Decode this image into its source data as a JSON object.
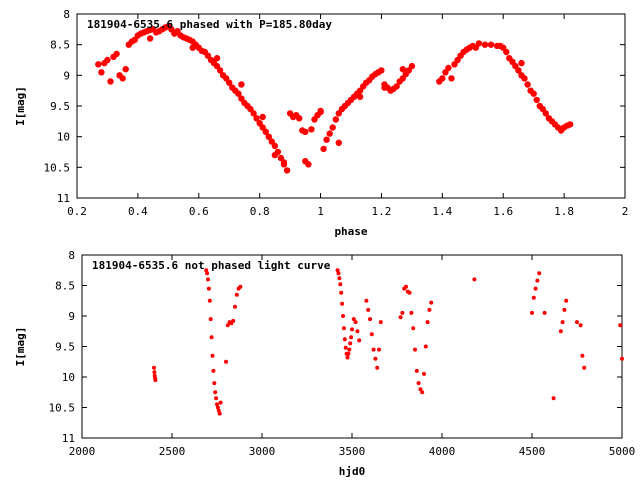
{
  "chart_data": [
    {
      "type": "scatter",
      "title": "181904-6535.6 phased with P=185.80day",
      "xlabel": "phase",
      "ylabel": "I[mag]",
      "xlim": [
        0.2,
        2.0
      ],
      "ylim": [
        11,
        8
      ],
      "y_inverted": true,
      "grid": false,
      "marker_color": "#ff0000",
      "x_ticks": [
        "0.2",
        "0.4",
        "0.6",
        "0.8",
        "1",
        "1.2",
        "1.4",
        "1.6",
        "1.8",
        "2"
      ],
      "y_ticks": [
        "8",
        "8.5",
        "9",
        "9.5",
        "10",
        "10.5",
        "11"
      ],
      "x": [
        0.27,
        0.28,
        0.3,
        0.32,
        0.33,
        0.34,
        0.35,
        0.37,
        0.38,
        0.39,
        0.4,
        0.41,
        0.42,
        0.43,
        0.44,
        0.45,
        0.46,
        0.47,
        0.48,
        0.49,
        0.5,
        0.51,
        0.52,
        0.53,
        0.54,
        0.55,
        0.56,
        0.57,
        0.58,
        0.59,
        0.6,
        0.61,
        0.62,
        0.63,
        0.64,
        0.65,
        0.66,
        0.67,
        0.68,
        0.69,
        0.7,
        0.71,
        0.72,
        0.73,
        0.74,
        0.75,
        0.76,
        0.77,
        0.78,
        0.79,
        0.8,
        0.81,
        0.82,
        0.83,
        0.84,
        0.85,
        0.86,
        0.87,
        0.88,
        0.89,
        0.9,
        0.92,
        0.93,
        0.94,
        0.95,
        0.96,
        0.97,
        0.98,
        0.99,
        1.0,
        1.01,
        1.02,
        1.03,
        1.04,
        1.05,
        1.06,
        1.07,
        1.08,
        1.09,
        1.1,
        1.11,
        1.12,
        1.13,
        1.14,
        1.15,
        1.16,
        1.17,
        1.18,
        1.19,
        1.2,
        1.21,
        1.22,
        1.23,
        1.24,
        1.25,
        1.26,
        1.27,
        1.28,
        1.29,
        1.3,
        1.39,
        1.4,
        1.41,
        1.42,
        1.44,
        1.45,
        1.46,
        1.47,
        1.48,
        1.49,
        1.5,
        1.52,
        1.54,
        1.56,
        1.58,
        1.6,
        1.61,
        1.62,
        1.63,
        1.64,
        1.65,
        1.66,
        1.67,
        1.68,
        1.69,
        1.7,
        1.71,
        1.72,
        1.73,
        1.74,
        1.75,
        1.76,
        1.77,
        1.78,
        1.79,
        1.8,
        1.81,
        1.82,
        0.29,
        0.31,
        0.36,
        0.44,
        0.52,
        0.58,
        0.66,
        0.74,
        0.81,
        0.85,
        0.88,
        0.91,
        0.95,
        1.0,
        1.06,
        1.13,
        1.21,
        1.27,
        1.43,
        1.51,
        1.59,
        1.66
      ],
      "y": [
        8.82,
        8.95,
        8.75,
        8.7,
        8.65,
        9.0,
        9.05,
        8.5,
        8.45,
        8.42,
        8.35,
        8.32,
        8.3,
        8.28,
        8.26,
        8.25,
        8.3,
        8.28,
        8.25,
        8.22,
        8.2,
        8.25,
        8.3,
        8.28,
        8.35,
        8.38,
        8.4,
        8.42,
        8.45,
        8.5,
        8.55,
        8.6,
        8.62,
        8.68,
        8.75,
        8.8,
        8.85,
        8.92,
        9.0,
        9.05,
        9.12,
        9.2,
        9.25,
        9.3,
        9.38,
        9.45,
        9.5,
        9.55,
        9.62,
        9.7,
        9.78,
        9.85,
        9.92,
        10.0,
        10.08,
        10.15,
        10.25,
        10.35,
        10.45,
        10.55,
        9.62,
        9.65,
        9.7,
        9.9,
        10.4,
        10.45,
        9.88,
        9.72,
        9.65,
        9.58,
        10.2,
        10.05,
        9.95,
        9.85,
        9.72,
        9.62,
        9.55,
        9.5,
        9.45,
        9.4,
        9.35,
        9.3,
        9.25,
        9.18,
        9.12,
        9.08,
        9.02,
        8.98,
        8.95,
        8.92,
        9.15,
        9.2,
        9.25,
        9.22,
        9.18,
        9.1,
        9.05,
        8.98,
        8.92,
        8.85,
        9.1,
        9.05,
        8.95,
        8.88,
        8.82,
        8.75,
        8.68,
        8.62,
        8.58,
        8.55,
        8.52,
        8.48,
        8.5,
        8.5,
        8.52,
        8.55,
        8.62,
        8.72,
        8.78,
        8.85,
        8.92,
        9.0,
        9.05,
        9.15,
        9.25,
        9.3,
        9.4,
        9.5,
        9.55,
        9.62,
        9.7,
        9.75,
        9.8,
        9.85,
        9.9,
        9.85,
        9.82,
        9.8,
        8.8,
        9.1,
        8.9,
        8.4,
        8.32,
        8.55,
        8.72,
        9.15,
        9.68,
        10.3,
        10.42,
        9.68,
        9.92,
        9.6,
        10.1,
        9.35,
        9.2,
        8.9,
        9.05,
        8.55,
        8.52,
        8.8
      ]
    },
    {
      "type": "scatter",
      "title": "181904-6535.6 not phased light curve",
      "xlabel": "hjd0",
      "ylabel": "I[mag]",
      "xlim": [
        2000,
        5000
      ],
      "ylim": [
        11,
        8
      ],
      "y_inverted": true,
      "grid": false,
      "marker_color": "#ff0000",
      "x_ticks": [
        "2000",
        "2500",
        "3000",
        "3500",
        "4000",
        "4500",
        "5000"
      ],
      "y_ticks": [
        "8",
        "8.5",
        "9",
        "9.5",
        "10",
        "10.5",
        "11"
      ],
      "x": [
        2400,
        2402,
        2404,
        2406,
        2408,
        2690,
        2695,
        2700,
        2705,
        2710,
        2715,
        2720,
        2725,
        2730,
        2735,
        2740,
        2745,
        2750,
        2755,
        2760,
        2765,
        2770,
        2800,
        2810,
        2820,
        2830,
        2840,
        2850,
        2860,
        2870,
        2880,
        3420,
        3425,
        3430,
        3435,
        3440,
        3445,
        3450,
        3455,
        3460,
        3465,
        3470,
        3475,
        3480,
        3485,
        3490,
        3495,
        3500,
        3510,
        3520,
        3530,
        3540,
        3580,
        3590,
        3600,
        3610,
        3620,
        3630,
        3640,
        3650,
        3660,
        3770,
        3780,
        3790,
        3800,
        3810,
        3820,
        3830,
        3840,
        3850,
        3860,
        3870,
        3880,
        3890,
        3900,
        3910,
        3920,
        3930,
        3940,
        4180,
        4500,
        4510,
        4520,
        4530,
        4540,
        4570,
        4620,
        4660,
        4670,
        4680,
        4690,
        4750,
        4770,
        4780,
        4790,
        4990,
        5000
      ],
      "y": [
        9.85,
        9.92,
        9.98,
        10.02,
        10.05,
        8.25,
        8.3,
        8.4,
        8.55,
        8.75,
        9.05,
        9.35,
        9.65,
        9.9,
        10.1,
        10.25,
        10.35,
        10.45,
        10.5,
        10.55,
        10.6,
        10.42,
        9.75,
        9.15,
        9.1,
        9.12,
        9.08,
        8.85,
        8.65,
        8.55,
        8.52,
        8.25,
        8.3,
        8.38,
        8.48,
        8.62,
        8.8,
        9.0,
        9.2,
        9.38,
        9.52,
        9.62,
        9.68,
        9.62,
        9.55,
        9.45,
        9.35,
        9.22,
        9.05,
        9.1,
        9.25,
        9.4,
        8.75,
        8.9,
        9.05,
        9.3,
        9.55,
        9.7,
        9.85,
        9.55,
        9.1,
        9.02,
        8.95,
        8.55,
        8.52,
        8.6,
        8.62,
        8.95,
        9.2,
        9.55,
        9.9,
        10.1,
        10.2,
        10.25,
        9.95,
        9.5,
        9.1,
        8.9,
        8.78,
        8.4,
        8.95,
        8.7,
        8.55,
        8.42,
        8.3,
        8.95,
        10.35,
        9.25,
        9.1,
        8.9,
        8.75,
        9.1,
        9.15,
        9.65,
        9.85,
        9.15,
        9.7
      ]
    }
  ]
}
